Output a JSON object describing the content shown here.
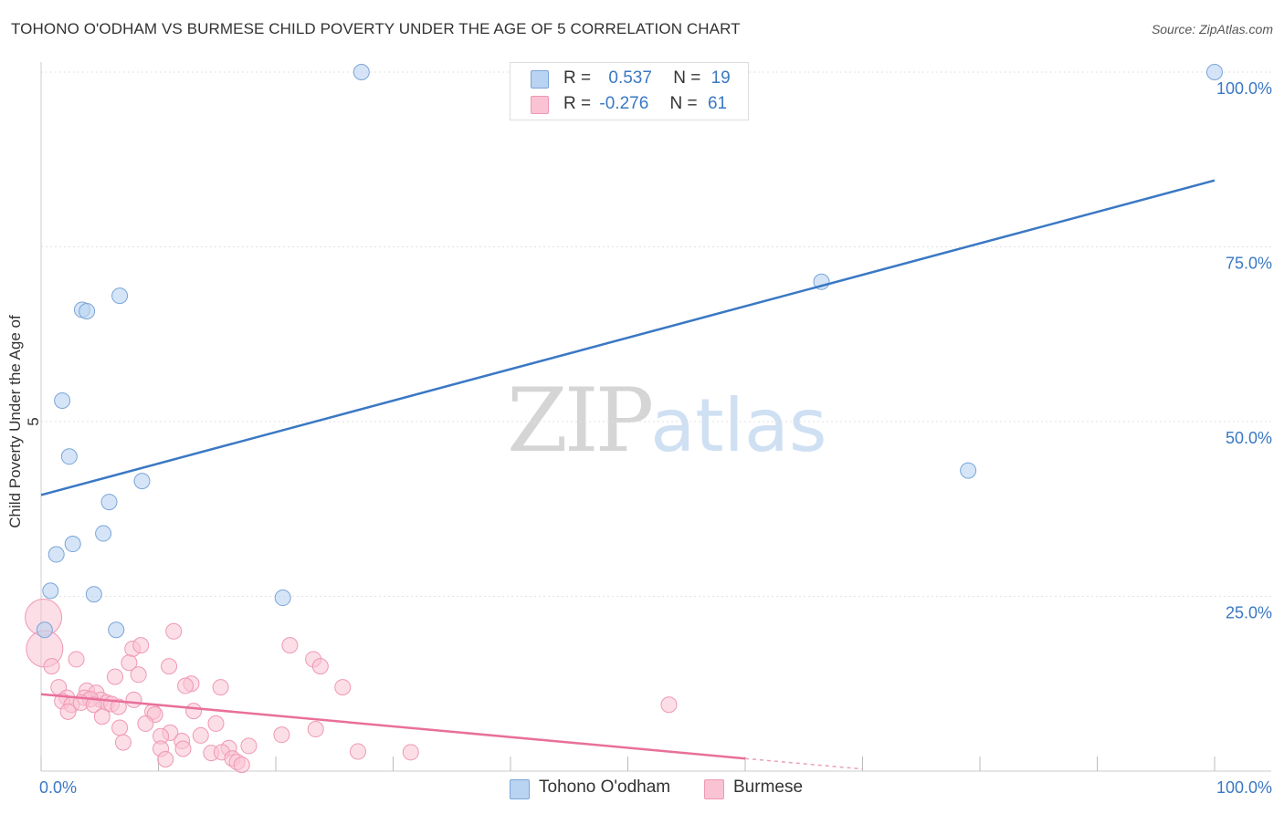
{
  "title": "TOHONO O'ODHAM VS BURMESE CHILD POVERTY UNDER THE AGE OF 5 CORRELATION CHART",
  "source": "Source: ZipAtlas.com",
  "watermark": {
    "zip": "ZIP",
    "atlas": "atlas"
  },
  "legend": {
    "row1": {
      "r_label": "R =",
      "r_value": "0.537",
      "n_label": "N =",
      "n_value": "19"
    },
    "row2": {
      "r_label": "R =",
      "r_value": "-0.276",
      "n_label": "N =",
      "n_value": "61"
    }
  },
  "colors": {
    "blue_fill": "#b9d3f2",
    "blue_stroke": "#7aa5d8",
    "blue_line": "#3a78c4",
    "pink_fill": "#f9c3d3",
    "pink_stroke": "#ef98b4",
    "pink_line": "#e8709a"
  },
  "chart_data": {
    "type": "scatter",
    "xlabel": "",
    "ylabel": "Child Poverty Under the Age of 5",
    "x_tick_labels": [
      "0.0%",
      "100.0%"
    ],
    "y_tick_labels": [
      "25.0%",
      "50.0%",
      "75.0%",
      "100.0%"
    ],
    "xlim": [
      0,
      100
    ],
    "ylim": [
      0,
      100
    ],
    "series": [
      {
        "name": "Tohono O'odham",
        "r": 0.537,
        "n": 19,
        "trend": {
          "x": [
            0,
            100
          ],
          "y": [
            39.5,
            84.5
          ]
        },
        "points": [
          {
            "x": 27.3,
            "y": 100
          },
          {
            "x": 100,
            "y": 100
          },
          {
            "x": 66.5,
            "y": 70
          },
          {
            "x": 6.7,
            "y": 68
          },
          {
            "x": 3.5,
            "y": 66
          },
          {
            "x": 3.9,
            "y": 65.8
          },
          {
            "x": 1.8,
            "y": 53
          },
          {
            "x": 2.4,
            "y": 45
          },
          {
            "x": 8.6,
            "y": 41.5
          },
          {
            "x": 5.8,
            "y": 38.5
          },
          {
            "x": 79,
            "y": 43
          },
          {
            "x": 5.3,
            "y": 34
          },
          {
            "x": 2.7,
            "y": 32.5
          },
          {
            "x": 1.3,
            "y": 31
          },
          {
            "x": 0.8,
            "y": 25.8
          },
          {
            "x": 4.5,
            "y": 25.3
          },
          {
            "x": 20.6,
            "y": 24.8
          },
          {
            "x": 0.3,
            "y": 20.2
          },
          {
            "x": 6.4,
            "y": 20.2
          }
        ]
      },
      {
        "name": "Burmese",
        "r": -0.276,
        "n": 61,
        "trend": {
          "x": [
            0,
            60
          ],
          "y": [
            11,
            1.8
          ]
        },
        "trend_dashed": {
          "x": [
            60,
            70
          ],
          "y": [
            1.8,
            0.3
          ]
        },
        "points": [
          {
            "x": 0.2,
            "y": 22,
            "big": 1
          },
          {
            "x": 0.3,
            "y": 17.5,
            "big": 1
          },
          {
            "x": 0.9,
            "y": 15
          },
          {
            "x": 1.5,
            "y": 12
          },
          {
            "x": 3,
            "y": 16
          },
          {
            "x": 11.3,
            "y": 20
          },
          {
            "x": 7.8,
            "y": 17.5
          },
          {
            "x": 8.5,
            "y": 18
          },
          {
            "x": 21.2,
            "y": 18
          },
          {
            "x": 10.9,
            "y": 15
          },
          {
            "x": 23.2,
            "y": 16
          },
          {
            "x": 23.8,
            "y": 15
          },
          {
            "x": 7.5,
            "y": 15.5
          },
          {
            "x": 6.3,
            "y": 13.5
          },
          {
            "x": 8.3,
            "y": 13.8
          },
          {
            "x": 12.8,
            "y": 12.5
          },
          {
            "x": 12.3,
            "y": 12.2
          },
          {
            "x": 15.3,
            "y": 12
          },
          {
            "x": 25.7,
            "y": 12
          },
          {
            "x": 3.9,
            "y": 11.5
          },
          {
            "x": 4.7,
            "y": 11.2
          },
          {
            "x": 5.1,
            "y": 10.2
          },
          {
            "x": 3.7,
            "y": 10.5
          },
          {
            "x": 4.2,
            "y": 10.3
          },
          {
            "x": 2.2,
            "y": 10.5
          },
          {
            "x": 1.8,
            "y": 10
          },
          {
            "x": 2.6,
            "y": 9.5
          },
          {
            "x": 3.4,
            "y": 9.8
          },
          {
            "x": 5.6,
            "y": 9.8
          },
          {
            "x": 7.9,
            "y": 10.2
          },
          {
            "x": 6,
            "y": 9.6
          },
          {
            "x": 4.5,
            "y": 9.5
          },
          {
            "x": 2.3,
            "y": 8.5
          },
          {
            "x": 6.6,
            "y": 9.2
          },
          {
            "x": 9.5,
            "y": 8.5
          },
          {
            "x": 13,
            "y": 8.6
          },
          {
            "x": 9.7,
            "y": 8.1
          },
          {
            "x": 5.2,
            "y": 7.8
          },
          {
            "x": 53.5,
            "y": 9.5
          },
          {
            "x": 8.9,
            "y": 6.8
          },
          {
            "x": 14.9,
            "y": 6.8
          },
          {
            "x": 6.7,
            "y": 6.2
          },
          {
            "x": 23.4,
            "y": 6
          },
          {
            "x": 11,
            "y": 5.5
          },
          {
            "x": 10.2,
            "y": 5
          },
          {
            "x": 20.5,
            "y": 5.2
          },
          {
            "x": 7,
            "y": 4.1
          },
          {
            "x": 12,
            "y": 4.3
          },
          {
            "x": 10.2,
            "y": 3.2
          },
          {
            "x": 12.1,
            "y": 3.2
          },
          {
            "x": 16,
            "y": 3.3
          },
          {
            "x": 17.7,
            "y": 3.6
          },
          {
            "x": 14.5,
            "y": 2.6
          },
          {
            "x": 15.4,
            "y": 2.7
          },
          {
            "x": 10.6,
            "y": 1.7
          },
          {
            "x": 16.3,
            "y": 1.8
          },
          {
            "x": 16.7,
            "y": 1.3
          },
          {
            "x": 17.1,
            "y": 0.9
          },
          {
            "x": 27,
            "y": 2.8
          },
          {
            "x": 31.5,
            "y": 2.7
          },
          {
            "x": 13.6,
            "y": 5.1
          }
        ]
      }
    ]
  }
}
